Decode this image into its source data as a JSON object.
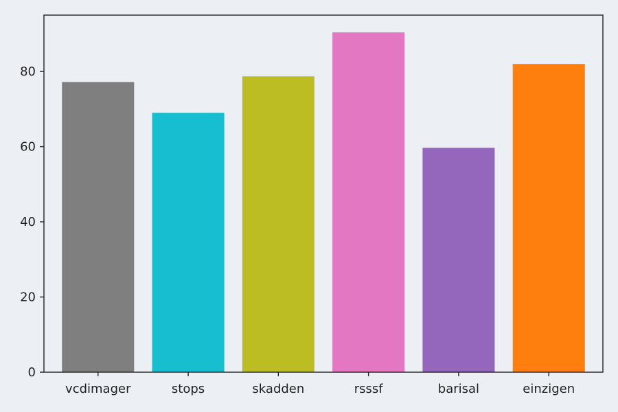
{
  "chart_data": {
    "type": "bar",
    "title": "",
    "xlabel": "",
    "ylabel": "",
    "categories": [
      "vcdimager",
      "stops",
      "skadden",
      "rsssf",
      "barisal",
      "einzigen"
    ],
    "values": [
      77.2,
      69.0,
      78.7,
      90.4,
      59.7,
      82.0
    ],
    "colors": [
      "#7f7f7f",
      "#17becf",
      "#bcbd22",
      "#e377c2",
      "#9467bd",
      "#ff7f0e"
    ],
    "ylim": [
      0,
      95
    ],
    "yticks": [
      0,
      20,
      40,
      60,
      80
    ],
    "grid": false,
    "legend": "none",
    "background": "#eceff4"
  }
}
